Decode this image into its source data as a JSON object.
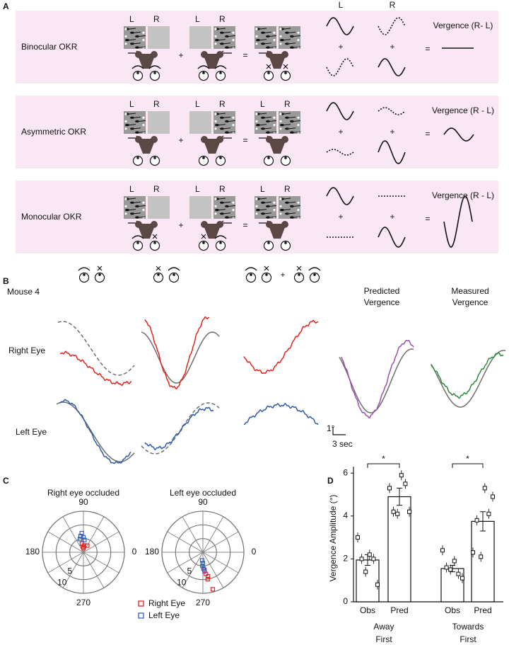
{
  "panel_labels": [
    "A",
    "B",
    "C",
    "D"
  ],
  "panel_a": {
    "column_headers": [
      "L",
      "R"
    ],
    "rows": [
      {
        "label": "Binocular OKR",
        "screen_labels": [
          [
            "L",
            "R"
          ],
          [
            "L",
            "R"
          ]
        ],
        "stim_ops": [
          "+",
          "="
        ],
        "trace_ops": [
          "+",
          "+",
          "="
        ],
        "vergence": "Vergence (R- L)"
      },
      {
        "label": "Asymmetric OKR",
        "screen_labels": [
          [
            "L",
            "R"
          ],
          [
            "L",
            "R"
          ],
          [
            "L",
            "R"
          ]
        ],
        "stim_ops": [
          "+",
          "="
        ],
        "trace_ops": [
          "+",
          "+",
          "="
        ],
        "vergence": "Vergence (R - L)"
      },
      {
        "label": "Monocular OKR",
        "screen_labels": [
          [
            "L",
            "R"
          ],
          [
            "L",
            "R"
          ],
          [
            "L",
            "R"
          ]
        ],
        "stim_ops": [
          "+",
          "="
        ],
        "trace_ops": [
          "+",
          "+",
          "="
        ],
        "vergence": "Vergence (R - L)"
      }
    ]
  },
  "panel_b": {
    "mouse": "Mouse 4",
    "row_labels": [
      "Right Eye",
      "Left Eye"
    ],
    "column_headers": [
      [
        "Predicted",
        "Vergence"
      ],
      [
        "Measured",
        "Vergence"
      ]
    ],
    "plus": "+",
    "scale_y": "1°",
    "scale_x": "3 sec"
  },
  "chart_data": [
    {
      "type": "polar",
      "title": "Right eye occluded",
      "rlim": [
        0,
        15
      ],
      "rticks": [
        5,
        10
      ],
      "thetaticks": [
        0,
        90,
        180,
        270
      ],
      "series": [
        {
          "name": "Right Eye",
          "color": "#e02424",
          "theta": [
            85,
            95,
            60,
            100,
            90
          ],
          "r": [
            2.5,
            2,
            2.8,
            3.2,
            1.5
          ]
        },
        {
          "name": "Left Eye",
          "color": "#3461b8",
          "theta": [
            95,
            100,
            90,
            105,
            85
          ],
          "r": [
            7,
            6,
            5.5,
            5,
            4.5
          ]
        }
      ]
    },
    {
      "type": "polar",
      "title": "Left eye occluded",
      "rlim": [
        0,
        15
      ],
      "rticks": [
        5,
        10
      ],
      "thetaticks": [
        0,
        90,
        180,
        270
      ],
      "series": [
        {
          "color": "#e02424",
          "theta": [
            275,
            278,
            282,
            280,
            285
          ],
          "r": [
            6.5,
            8,
            9,
            10,
            14
          ]
        },
        {
          "color": "#3461b8",
          "theta": [
            265,
            270,
            268,
            272,
            275
          ],
          "r": [
            3,
            4,
            5,
            6,
            7
          ]
        }
      ]
    },
    {
      "type": "bar",
      "ylabel": "Vergence Amplitude (°)",
      "categories": [
        "Obs",
        "Pred",
        "Obs",
        "Pred"
      ],
      "groups": [
        [
          "Away",
          "First"
        ],
        [
          "Towards",
          "First"
        ]
      ],
      "significance": [
        "*",
        "*"
      ],
      "values": [
        1.95,
        4.9,
        1.55,
        3.75
      ],
      "errors": [
        0.25,
        0.4,
        0.15,
        0.45
      ],
      "points": [
        [
          3.0,
          2.0,
          1.4,
          2.2,
          2.0,
          0.8
        ],
        [
          5.3,
          4.2,
          4.1,
          5.9,
          5.5,
          4.2
        ],
        [
          2.4,
          1.6,
          1.5,
          1.9,
          1.3,
          1.1
        ],
        [
          2.3,
          3.8,
          2.1,
          5.3,
          4.1,
          4.9
        ]
      ],
      "color": "#ffffff",
      "ylim": [
        0,
        6.3
      ],
      "yticks": [
        0,
        2,
        4,
        6
      ]
    }
  ]
}
